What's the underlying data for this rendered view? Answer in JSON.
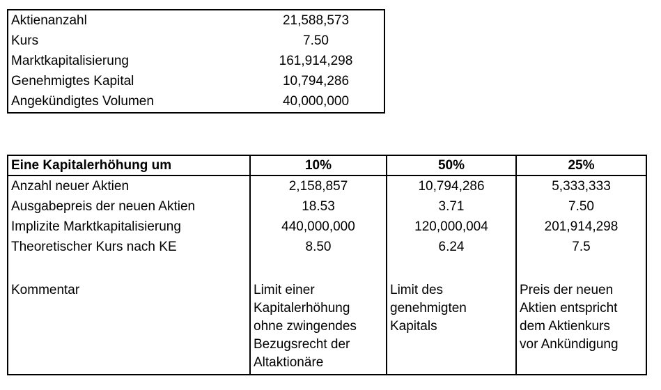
{
  "colors": {
    "background": "#ffffff",
    "text": "#000000",
    "border": "#000000"
  },
  "summary_table": {
    "rows": [
      {
        "label": "Aktienanzahl",
        "value": "21,588,573"
      },
      {
        "label": "Kurs",
        "value": "7.50"
      },
      {
        "label": "Marktkapitalisierung",
        "value": "161,914,298"
      },
      {
        "label": "Genehmigtes Kapital",
        "value": "10,794,286"
      },
      {
        "label": "Angekündigtes Volumen",
        "value": "40,000,000"
      }
    ]
  },
  "scenario_table": {
    "header": {
      "label": "Eine Kapitalerhöhung um",
      "col1": "10%",
      "col2": "50%",
      "col3": "25%"
    },
    "rows": [
      {
        "label": "Anzahl neuer Aktien",
        "col1": "2,158,857",
        "col2": "10,794,286",
        "col3": "5,333,333"
      },
      {
        "label": "Ausgabepreis der neuen Aktien",
        "col1": "18.53",
        "col2": "3.71",
        "col3": "7.50"
      },
      {
        "label": "Implizite Marktkapitalisierung",
        "col1": "440,000,000",
        "col2": "120,000,004",
        "col3": "201,914,298"
      },
      {
        "label": "Theoretischer Kurs nach KE",
        "col1": "8.50",
        "col2": "6.24",
        "col3": "7.5"
      }
    ],
    "comment_row": {
      "label": "Kommentar",
      "col1": "Limit einer\nKapitalerhöhung\nohne zwingendes\nBezugsrecht der\nAltaktionäre",
      "col2": "Limit des\ngenehmigten\nKapitals",
      "col3": "Preis der neuen\nAktien entspricht\ndem Aktienkurs\nvor Ankündigung"
    }
  }
}
